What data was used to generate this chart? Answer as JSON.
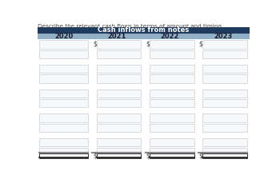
{
  "title_text": "Cash inflows from notes",
  "instruction_text": "Describe the relevant cash flows in terms of amount and timing.",
  "columns": [
    "2020",
    "2021",
    "2022",
    "2023"
  ],
  "header_bg": "#1e3a5f",
  "subheader_bg": "#92afc8",
  "header_text_color": "#ffffff",
  "subheader_text_color": "#1a1a2e",
  "box_fill": "#f7f8fa",
  "box_edge": "#c8cdd4",
  "fig_bg": "#ffffff",
  "instruction_color": "#444444",
  "separator_color": "#888888",
  "total_box_fill": "#ffffff",
  "total_box_edge": "#333333",
  "num_row_groups": 5,
  "rows_per_group": 2,
  "dollar_sign_color": "#444444"
}
